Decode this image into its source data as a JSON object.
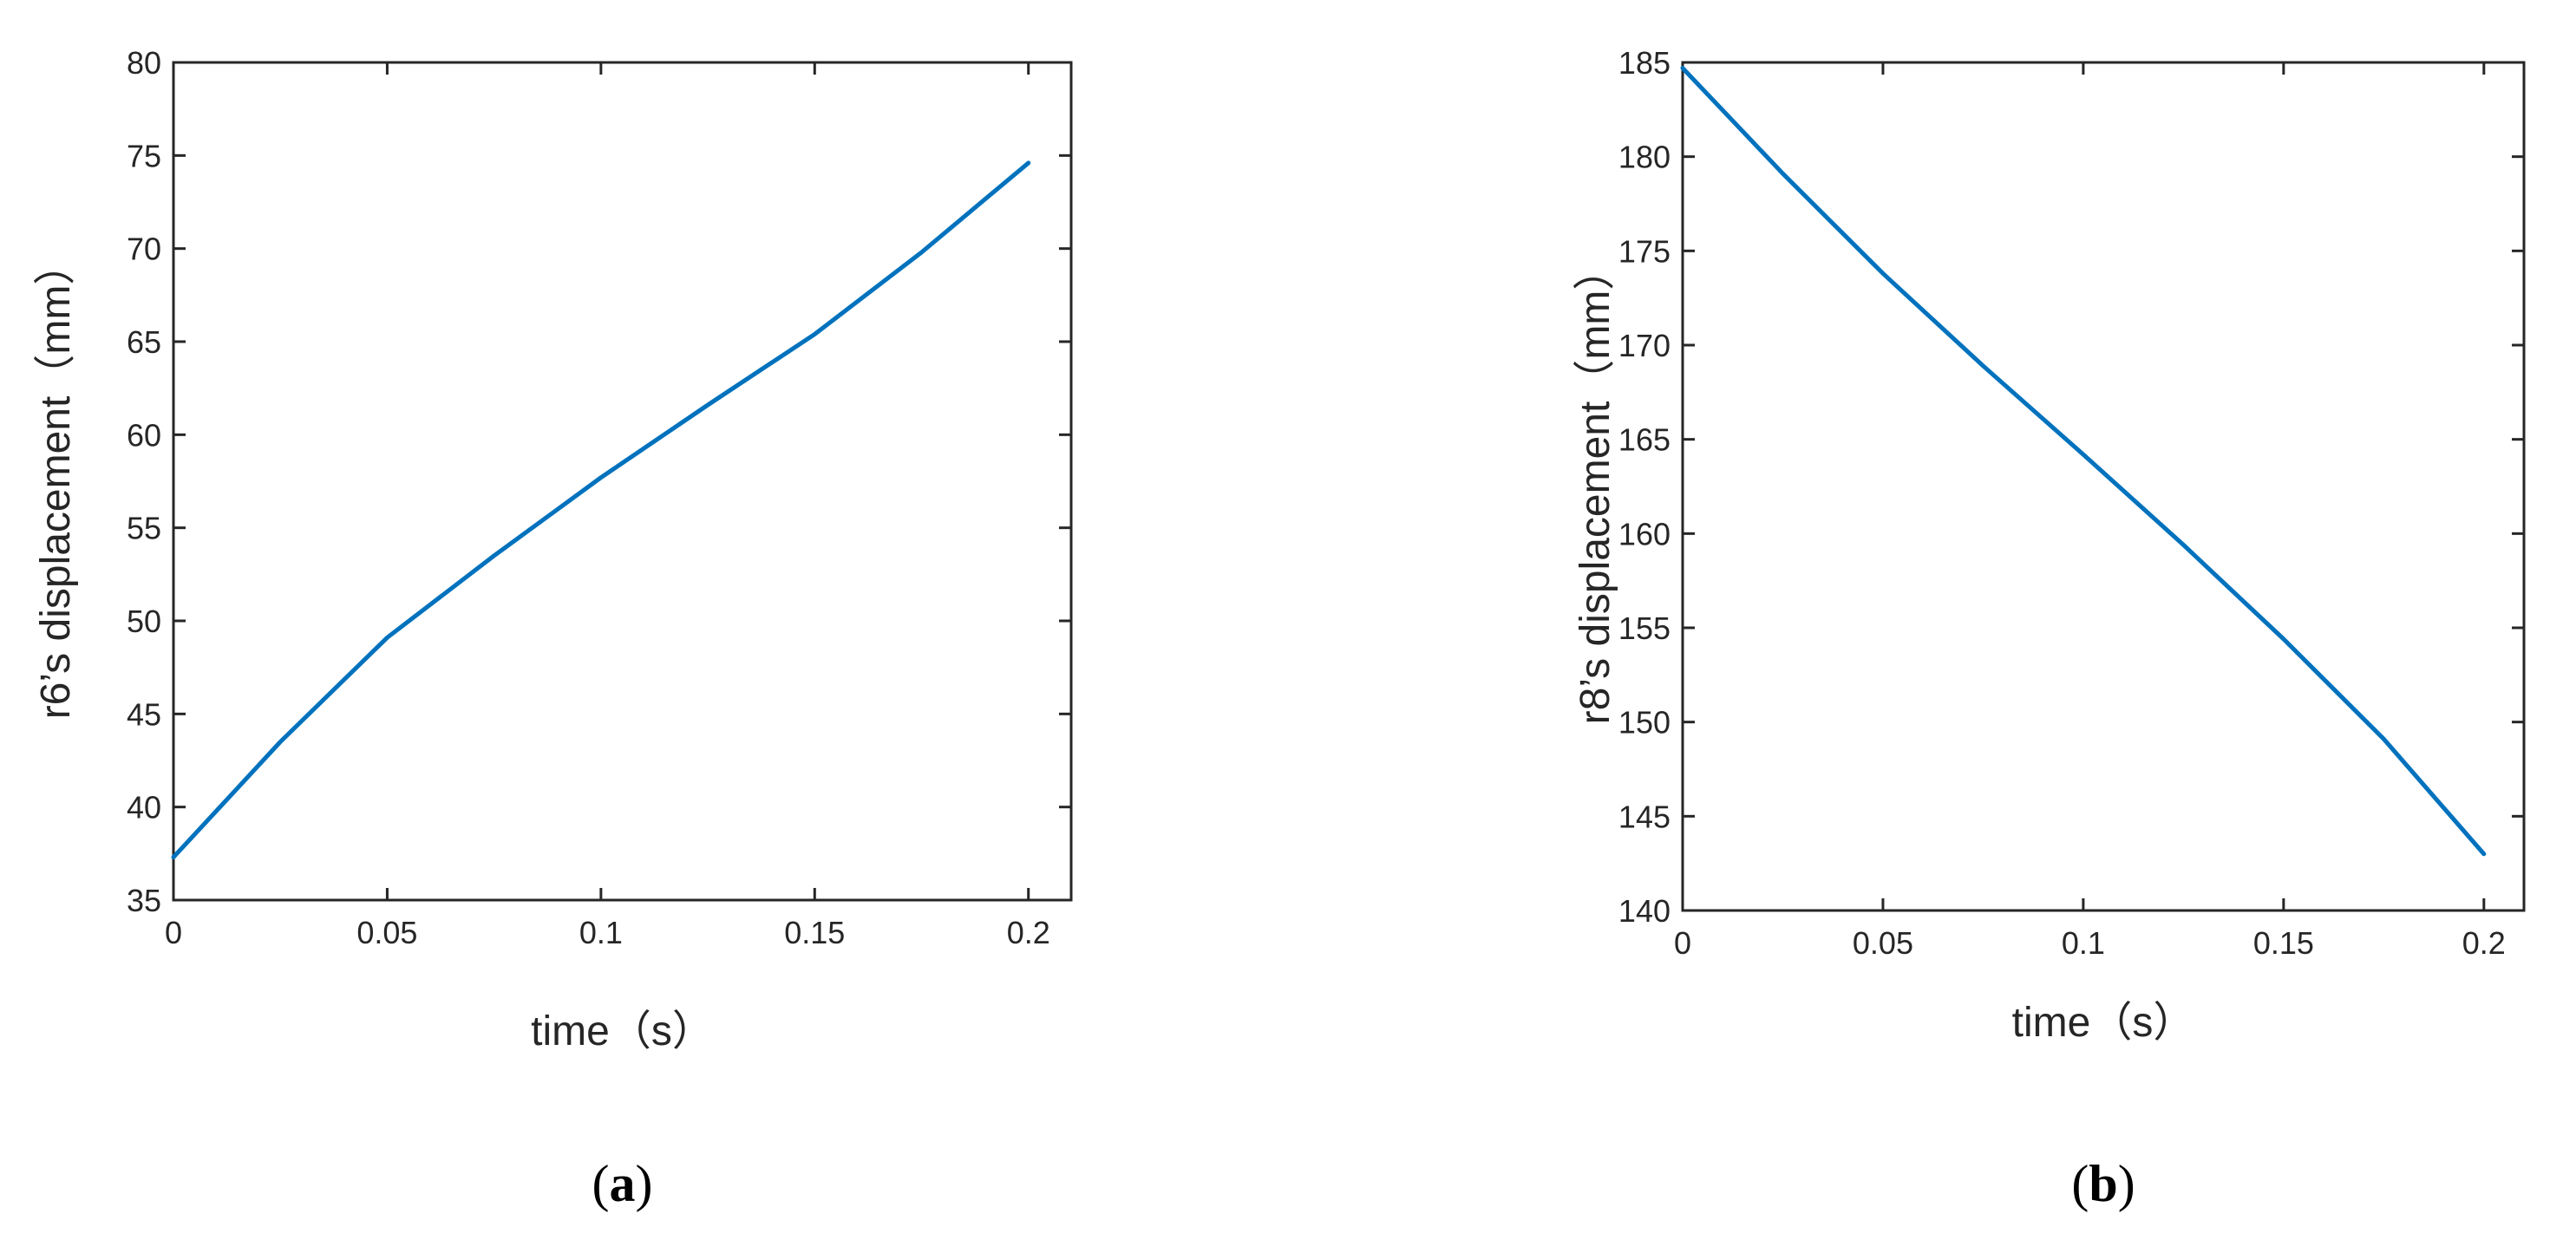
{
  "chart_data": [
    {
      "type": "line",
      "panel_label": {
        "open": "(",
        "letter": "a",
        "close": ")"
      },
      "xlabel": "time（s）",
      "ylabel": "r6’s displacement（mm）",
      "xlim": [
        0,
        0.21
      ],
      "ylim": [
        35,
        80
      ],
      "xticks": [
        0,
        0.05,
        0.1,
        0.15,
        0.2
      ],
      "xtick_labels": [
        "0",
        "0.05",
        "0.1",
        "0.15",
        "0.2"
      ],
      "yticks": [
        35,
        40,
        45,
        50,
        55,
        60,
        65,
        70,
        75,
        80
      ],
      "ytick_labels": [
        "35",
        "40",
        "45",
        "50",
        "55",
        "60",
        "65",
        "70",
        "75",
        "80"
      ],
      "grid": false,
      "series": [
        {
          "color": "#0072BD",
          "x": [
            0,
            0.025,
            0.05,
            0.075,
            0.1,
            0.125,
            0.15,
            0.175,
            0.2
          ],
          "y": [
            37.3,
            43.5,
            49.1,
            53.5,
            57.7,
            61.6,
            65.4,
            69.8,
            74.6
          ]
        }
      ]
    },
    {
      "type": "line",
      "panel_label": {
        "open": "(",
        "letter": "b",
        "close": ")"
      },
      "xlabel": "time（s）",
      "ylabel": "r8’s displacement（mm）",
      "xlim": [
        0,
        0.21
      ],
      "ylim": [
        140,
        185
      ],
      "xticks": [
        0,
        0.05,
        0.1,
        0.15,
        0.2
      ],
      "xtick_labels": [
        "0",
        "0.05",
        "0.1",
        "0.15",
        "0.2"
      ],
      "yticks": [
        140,
        145,
        150,
        155,
        160,
        165,
        170,
        175,
        180,
        185
      ],
      "ytick_labels": [
        "140",
        "145",
        "150",
        "155",
        "160",
        "165",
        "170",
        "175",
        "180",
        "185"
      ],
      "grid": false,
      "series": [
        {
          "color": "#0072BD",
          "x": [
            0,
            0.025,
            0.05,
            0.075,
            0.1,
            0.125,
            0.15,
            0.175,
            0.2
          ],
          "y": [
            184.7,
            179.1,
            173.8,
            168.9,
            164.2,
            159.4,
            154.4,
            149.1,
            143.0
          ]
        }
      ]
    }
  ]
}
